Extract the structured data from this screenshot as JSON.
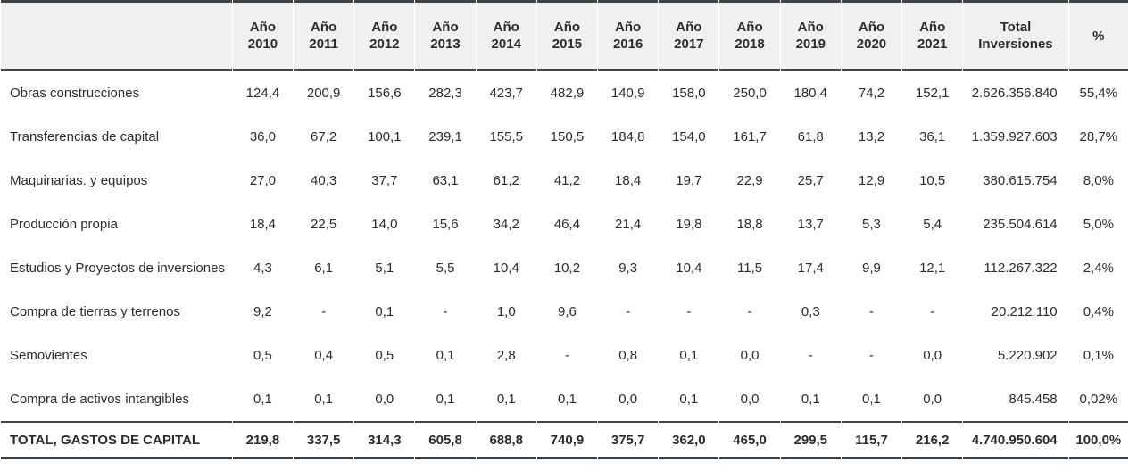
{
  "colors": {
    "border": "#3f4246",
    "header_bg": "#f0f0ef",
    "text": "#2c2c30"
  },
  "chart_data": {
    "type": "table",
    "title": "",
    "year_columns": [
      {
        "top": "Año",
        "bottom": "2010"
      },
      {
        "top": "Año",
        "bottom": "2011"
      },
      {
        "top": "Año",
        "bottom": "2012"
      },
      {
        "top": "Año",
        "bottom": "2013"
      },
      {
        "top": "Año",
        "bottom": "2014"
      },
      {
        "top": "Año",
        "bottom": "2015"
      },
      {
        "top": "Año",
        "bottom": "2016"
      },
      {
        "top": "Año",
        "bottom": "2017"
      },
      {
        "top": "Año",
        "bottom": "2018"
      },
      {
        "top": "Año",
        "bottom": "2019"
      },
      {
        "top": "Año",
        "bottom": "2020"
      },
      {
        "top": "Año",
        "bottom": "2021"
      }
    ],
    "total_column": {
      "top": "Total",
      "bottom": "Inversiones"
    },
    "percent_column": {
      "top": "%",
      "bottom": ""
    },
    "rows": [
      {
        "label": "Obras construcciones",
        "values": [
          "124,4",
          "200,9",
          "156,6",
          "282,3",
          "423,7",
          "482,9",
          "140,9",
          "158,0",
          "250,0",
          "180,4",
          "74,2",
          "152,1"
        ],
        "total": "2.626.356.840",
        "percent": "55,4%"
      },
      {
        "label": "Transferencias de capital",
        "values": [
          "36,0",
          "67,2",
          "100,1",
          "239,1",
          "155,5",
          "150,5",
          "184,8",
          "154,0",
          "161,7",
          "61,8",
          "13,2",
          "36,1"
        ],
        "total": "1.359.927.603",
        "percent": "28,7%"
      },
      {
        "label": "Maquinarias. y equipos",
        "values": [
          "27,0",
          "40,3",
          "37,7",
          "63,1",
          "61,2",
          "41,2",
          "18,4",
          "19,7",
          "22,9",
          "25,7",
          "12,9",
          "10,5"
        ],
        "total": "380.615.754",
        "percent": "8,0%"
      },
      {
        "label": "Producción propia",
        "values": [
          "18,4",
          "22,5",
          "14,0",
          "15,6",
          "34,2",
          "46,4",
          "21,4",
          "19,8",
          "18,8",
          "13,7",
          "5,3",
          "5,4"
        ],
        "total": "235.504.614",
        "percent": "5,0%"
      },
      {
        "label": "Estudios y Proyectos de inversiones",
        "values": [
          "4,3",
          "6,1",
          "5,1",
          "5,5",
          "10,4",
          "10,2",
          "9,3",
          "10,4",
          "11,5",
          "17,4",
          "9,9",
          "12,1"
        ],
        "total": "112.267.322",
        "percent": "2,4%"
      },
      {
        "label": "Compra de tierras y terrenos",
        "values": [
          "9,2",
          "-",
          "0,1",
          "-",
          "1,0",
          "9,6",
          "-",
          "-",
          "-",
          "0,3",
          "-",
          "-"
        ],
        "total": "20.212.110",
        "percent": "0,4%"
      },
      {
        "label": "Semovientes",
        "values": [
          "0,5",
          "0,4",
          "0,5",
          "0,1",
          "2,8",
          "-",
          "0,8",
          "0,1",
          "0,0",
          "-",
          "-",
          "0,0"
        ],
        "total": "5.220.902",
        "percent": "0,1%"
      },
      {
        "label": "Compra de activos intangibles",
        "values": [
          "0,1",
          "0,1",
          "0,0",
          "0,1",
          "0,1",
          "0,1",
          "0,0",
          "0,1",
          "0,0",
          "0,1",
          "0,1",
          "0,0"
        ],
        "total": "845.458",
        "percent": "0,02%"
      }
    ],
    "total_row": {
      "label": "TOTAL, GASTOS DE CAPITAL",
      "values": [
        "219,8",
        "337,5",
        "314,3",
        "605,8",
        "688,8",
        "740,9",
        "375,7",
        "362,0",
        "465,0",
        "299,5",
        "115,7",
        "216,2"
      ],
      "total": "4.740.950.604",
      "percent": "100,0%"
    }
  }
}
